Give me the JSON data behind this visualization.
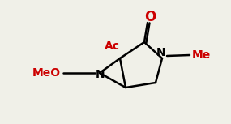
{
  "bg_color": "#f0f0e8",
  "bond_color": "#000000",
  "label_color_black": "#000000",
  "label_color_red": "#cc0000",
  "label_O": "O",
  "label_Ac": "Ac",
  "label_MeO": "MeO",
  "label_N1": "N",
  "label_N2": "N",
  "label_Me": "Me",
  "figsize": [
    2.85,
    1.53
  ],
  "dpi": 100
}
